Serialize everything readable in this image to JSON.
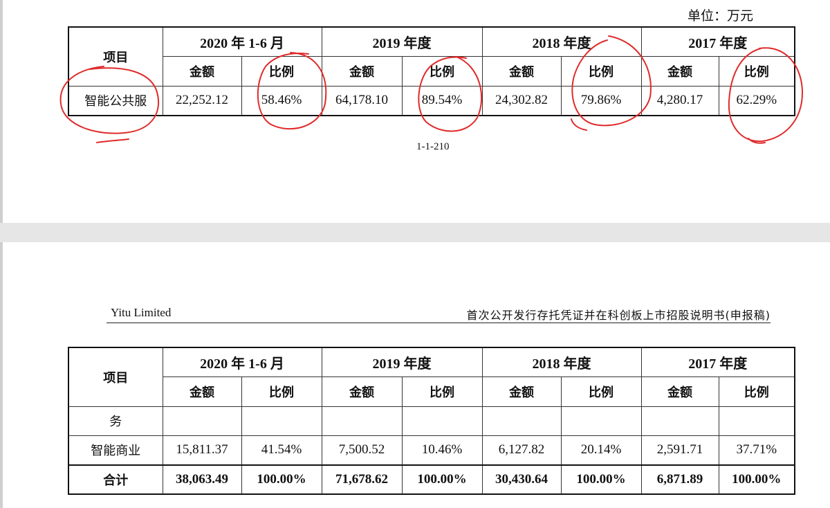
{
  "page1": {
    "unit": "单位：万元",
    "page_number": "1-1-210",
    "table": {
      "item_header": "项目",
      "periods": [
        "2020 年 1-6 月",
        "2019 年度",
        "2018 年度",
        "2017 年度"
      ],
      "amount_label": "金额",
      "ratio_label": "比例",
      "rows": [
        {
          "item": "智能公共服",
          "cells": [
            "22,252.12",
            "58.46%",
            "64,178.10",
            "89.54%",
            "24,302.82",
            "79.86%",
            "4,280.17",
            "62.29%"
          ]
        }
      ]
    }
  },
  "page2": {
    "header_left": "Yitu Limited",
    "header_right": "首次公开发行存托凭证并在科创板上市招股说明书(申报稿)",
    "table": {
      "item_header": "项目",
      "periods": [
        "2020 年 1-6 月",
        "2019 年度",
        "2018 年度",
        "2017 年度"
      ],
      "amount_label": "金额",
      "ratio_label": "比例",
      "continuation": "务",
      "rows": [
        {
          "item": "智能商业",
          "cells": [
            "15,811.37",
            "41.54%",
            "7,500.52",
            "10.46%",
            "6,127.82",
            "20.14%",
            "2,591.71",
            "37.71%"
          ]
        }
      ],
      "total": {
        "item": "合计",
        "cells": [
          "38,063.49",
          "100.00%",
          "71,678.62",
          "100.00%",
          "30,430.64",
          "100.00%",
          "6,871.89",
          "100.00%"
        ]
      }
    }
  },
  "annotation_color": "#e02a2a"
}
